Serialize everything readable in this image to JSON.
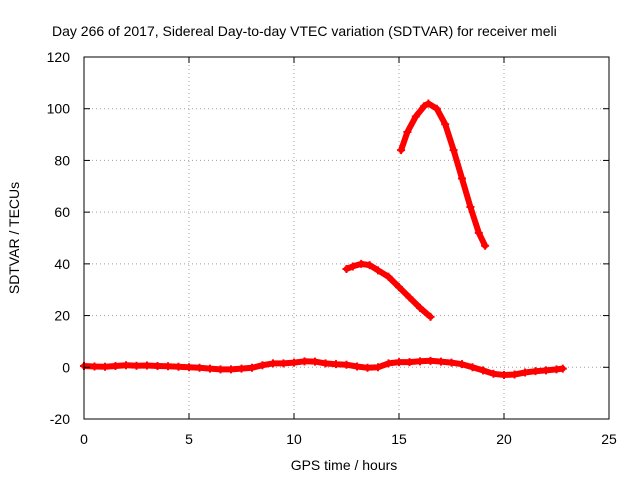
{
  "chart_data": {
    "type": "scatter",
    "title": "Day 266 of 2017, Sidereal Day-to-day VTEC variation (SDTVAR) for receiver meli",
    "xlabel": "GPS time / hours",
    "ylabel": "SDTVAR / TECUs",
    "xlim": [
      0,
      25
    ],
    "ylim": [
      -20,
      120
    ],
    "xticks": [
      "0",
      "5",
      "10",
      "15",
      "20",
      "25"
    ],
    "yticks": [
      "-20",
      "0",
      "20",
      "40",
      "60",
      "80",
      "100",
      "120"
    ],
    "grid": true,
    "legend": false,
    "marker_color": "#ff0000",
    "series": [
      {
        "points": [
          [
            0,
            0.5
          ],
          [
            0.5,
            0.3
          ],
          [
            1,
            0.2
          ],
          [
            1.5,
            0.5
          ],
          [
            2,
            0.8
          ],
          [
            2.5,
            0.6
          ],
          [
            3,
            0.7
          ],
          [
            3.5,
            0.5
          ],
          [
            4,
            0.4
          ],
          [
            4.5,
            0.2
          ],
          [
            5,
            0.0
          ],
          [
            5.5,
            -0.2
          ],
          [
            6,
            -0.5
          ],
          [
            6.5,
            -0.8
          ],
          [
            7,
            -0.8
          ],
          [
            7.5,
            -0.5
          ],
          [
            8,
            -0.2
          ],
          [
            8.5,
            0.8
          ],
          [
            9,
            1.5
          ],
          [
            9.5,
            1.5
          ],
          [
            10,
            1.8
          ],
          [
            10.5,
            2.3
          ],
          [
            11,
            2.2
          ],
          [
            11.5,
            1.5
          ],
          [
            12,
            1.2
          ],
          [
            12.5,
            1.0
          ],
          [
            13,
            0.3
          ],
          [
            13.5,
            -0.2
          ],
          [
            14,
            0.0
          ],
          [
            14.5,
            1.5
          ],
          [
            15,
            2.0
          ],
          [
            15.5,
            2.0
          ],
          [
            16,
            2.3
          ],
          [
            16.5,
            2.5
          ],
          [
            17,
            2.2
          ],
          [
            17.5,
            1.8
          ],
          [
            18,
            1.2
          ],
          [
            18.5,
            0.0
          ],
          [
            19,
            -1.2
          ],
          [
            19.5,
            -2.5
          ],
          [
            20,
            -3.0
          ],
          [
            20.5,
            -2.8
          ],
          [
            21,
            -2.0
          ],
          [
            21.5,
            -1.5
          ],
          [
            22,
            -1.2
          ],
          [
            22.5,
            -0.8
          ],
          [
            22.8,
            -0.5
          ]
        ]
      },
      {
        "points": [
          [
            12.5,
            38
          ],
          [
            12.8,
            39
          ],
          [
            13.2,
            40
          ],
          [
            13.6,
            39.5
          ],
          [
            14,
            37.5
          ],
          [
            14.5,
            35
          ],
          [
            15,
            31
          ],
          [
            15.5,
            27
          ],
          [
            16,
            23
          ],
          [
            16.5,
            19.5
          ]
        ]
      },
      {
        "points": [
          [
            15.1,
            84
          ],
          [
            15.4,
            91
          ],
          [
            15.8,
            97
          ],
          [
            16.2,
            101
          ],
          [
            16.4,
            102
          ],
          [
            16.8,
            100
          ],
          [
            17.2,
            94
          ],
          [
            17.6,
            84
          ],
          [
            18,
            73
          ],
          [
            18.4,
            62
          ],
          [
            18.8,
            52
          ],
          [
            19.1,
            47
          ]
        ]
      }
    ]
  }
}
